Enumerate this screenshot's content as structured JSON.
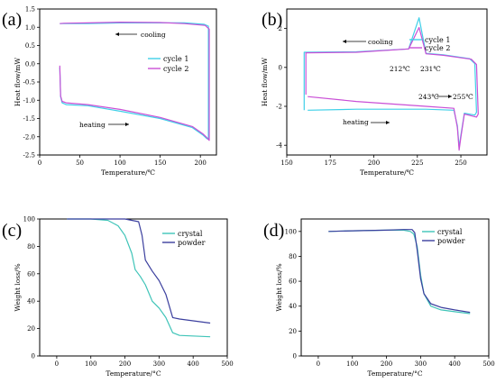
{
  "chart_data": [
    {
      "panel": "(a)",
      "type": "line",
      "xlabel": "Temperature/℃",
      "ylabel": "Heat flow/mW",
      "xlim": [
        0,
        220
      ],
      "ylim": [
        -2.5,
        1.5
      ],
      "xticks": [
        0,
        50,
        100,
        150,
        200
      ],
      "yticks": [
        1.5,
        1.0,
        0.5,
        0.0,
        -0.5,
        -1.0,
        -1.5,
        -2.0,
        -2.5
      ],
      "ytick_labels": [
        "1.5",
        "1.0",
        "0.5",
        "0.0",
        "-0.5",
        "-1.0",
        "-1.5",
        "-2.0",
        "-2.5"
      ],
      "legend_position": "right",
      "annotations": [
        "cooling",
        "heating"
      ],
      "series": [
        {
          "name": "cycle 1",
          "color": "#3fd0e8",
          "x": [
            25,
            26,
            28,
            33,
            60,
            100,
            150,
            190,
            203,
            208,
            210,
            210,
            205,
            180,
            150,
            100,
            60,
            30,
            25
          ],
          "y": [
            -0.1,
            -0.9,
            -1.07,
            -1.12,
            -1.15,
            -1.3,
            -1.5,
            -1.75,
            -1.95,
            -2.05,
            -2.07,
            1.03,
            1.08,
            1.12,
            1.12,
            1.12,
            1.1,
            1.1,
            1.1
          ]
        },
        {
          "name": "cycle 2",
          "color": "#c94fd6",
          "x": [
            25,
            26,
            28,
            33,
            60,
            100,
            150,
            190,
            203,
            208,
            211,
            211,
            206,
            180,
            150,
            100,
            60,
            30,
            25
          ],
          "y": [
            -0.05,
            -0.88,
            -1.03,
            -1.07,
            -1.12,
            -1.25,
            -1.47,
            -1.72,
            -1.92,
            -2.02,
            -2.1,
            0.95,
            1.05,
            1.1,
            1.13,
            1.14,
            1.12,
            1.11,
            1.1
          ]
        }
      ]
    },
    {
      "panel": "(b)",
      "type": "line",
      "xlabel": "Temperature/℃",
      "ylabel": "Heat flow/mW",
      "xlim": [
        150,
        265
      ],
      "ylim": [
        -4.5,
        3
      ],
      "xticks": [
        150,
        175,
        200,
        225,
        250
      ],
      "yticks": [
        2,
        0,
        -2,
        -4
      ],
      "legend_position": "top-right",
      "annotations": [
        "cooling",
        "heating",
        "212℃",
        "231℃",
        "243℃",
        "255℃"
      ],
      "series": [
        {
          "name": "cycle 1",
          "color": "#3fd0e8",
          "x": [
            160,
            160,
            190,
            220,
            226,
            230,
            240,
            255,
            258,
            259,
            258,
            252,
            250,
            249,
            248,
            246,
            230,
            190,
            162
          ],
          "y": [
            -2.2,
            0.78,
            0.8,
            0.95,
            2.55,
            0.72,
            0.65,
            0.45,
            0.2,
            -2.3,
            -2.45,
            -2.35,
            -3.5,
            -4.1,
            -3.0,
            -2.2,
            -2.15,
            -2.15,
            -2.2
          ]
        },
        {
          "name": "cycle 2",
          "color": "#c94fd6",
          "x": [
            161,
            161,
            190,
            220,
            226,
            230,
            240,
            256,
            259,
            260,
            259,
            252,
            250,
            249,
            248,
            246,
            230,
            190,
            162
          ],
          "y": [
            -1.4,
            0.75,
            0.78,
            0.95,
            2.05,
            0.7,
            0.62,
            0.42,
            0.15,
            -2.4,
            -2.55,
            -2.4,
            -3.6,
            -4.25,
            -3.1,
            -2.1,
            -2.0,
            -1.75,
            -1.5
          ]
        }
      ]
    },
    {
      "panel": "(c)",
      "type": "line",
      "xlabel": "Temperature/°C",
      "ylabel": "Weight loss/%",
      "xlim": [
        -50,
        500
      ],
      "ylim": [
        0,
        100
      ],
      "xticks": [
        0,
        100,
        200,
        300,
        400,
        500
      ],
      "yticks": [
        0,
        20,
        40,
        60,
        80,
        100
      ],
      "legend_position": "top-right",
      "series": [
        {
          "name": "crystal",
          "color": "#3fc4b8",
          "x": [
            30,
            100,
            150,
            180,
            200,
            220,
            230,
            245,
            260,
            280,
            300,
            320,
            340,
            360,
            450
          ],
          "y": [
            100,
            100,
            99,
            95,
            88,
            75,
            63,
            58,
            52,
            40,
            35,
            28,
            17,
            15,
            14
          ]
        },
        {
          "name": "powder",
          "color": "#3b3f9e",
          "x": [
            30,
            100,
            200,
            240,
            250,
            260,
            280,
            300,
            320,
            340,
            360,
            450
          ],
          "y": [
            100,
            100,
            100,
            98,
            88,
            70,
            62,
            55,
            45,
            28,
            27,
            24
          ]
        }
      ]
    },
    {
      "panel": "(d)",
      "type": "line",
      "xlabel": "Temperature/°C",
      "ylabel": "Weight loss/%",
      "xlim": [
        -50,
        500
      ],
      "ylim": [
        0,
        110
      ],
      "xticks": [
        0,
        100,
        200,
        300,
        400,
        500
      ],
      "yticks": [
        0,
        20,
        40,
        60,
        80,
        100
      ],
      "legend_position": "top-right",
      "series": [
        {
          "name": "crystal",
          "color": "#3fc4b8",
          "x": [
            30,
            100,
            200,
            250,
            270,
            280,
            290,
            300,
            310,
            330,
            360,
            400,
            445
          ],
          "y": [
            100,
            100.5,
            101,
            101,
            100,
            98,
            88,
            65,
            50,
            40,
            37,
            35.5,
            34
          ]
        },
        {
          "name": "powder",
          "color": "#3b3f9e",
          "x": [
            30,
            100,
            200,
            250,
            275,
            283,
            290,
            300,
            310,
            330,
            360,
            400,
            445
          ],
          "y": [
            100,
            100.5,
            101,
            101.5,
            101.5,
            99,
            85,
            62,
            50,
            42,
            39,
            37,
            35
          ]
        }
      ]
    }
  ],
  "labels": {
    "a": "(a)",
    "b": "(b)",
    "c": "(c)",
    "d": "(d)"
  }
}
